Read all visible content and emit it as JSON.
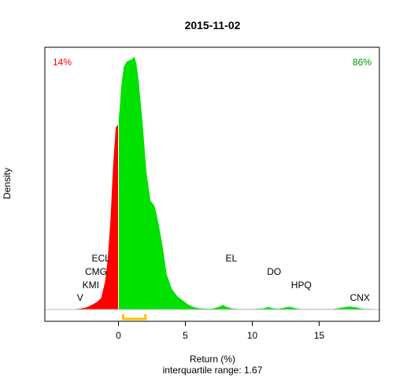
{
  "chart_data": {
    "type": "area",
    "title": "2015-11-02",
    "xlabel": "Return (%)",
    "ylabel": "Density",
    "subtitle": "interquartile range: 1.67",
    "xlim": [
      -5.5,
      19.5
    ],
    "ylim": [
      0,
      1
    ],
    "x_ticks": [
      0,
      5,
      10,
      15
    ],
    "x_tick_labels": [
      "0",
      "5",
      "10",
      "15"
    ],
    "split_at": 0,
    "negative_share_label": "14%",
    "positive_share_label": "86%",
    "colors": {
      "negative": "#ff0000",
      "positive": "#00e100",
      "iqr": "#ffc000",
      "share_negative": "#ff0000",
      "share_positive": "#009900"
    },
    "iqr": [
      0.35,
      2.02
    ],
    "density": {
      "x": [
        -3.2,
        -2.8,
        -2.4,
        -2.0,
        -1.6,
        -1.3,
        -1.0,
        -0.8,
        -0.6,
        -0.4,
        -0.2,
        -0.05,
        0.0,
        0.1,
        0.2,
        0.4,
        0.6,
        0.8,
        1.0,
        1.1,
        1.2,
        1.35,
        1.5,
        1.8,
        2.1,
        2.4,
        2.7,
        3.0,
        3.3,
        3.6,
        4.0,
        4.4,
        4.8,
        5.2,
        5.6,
        6.0,
        6.5,
        7.0,
        7.5,
        7.8,
        8.1,
        8.5,
        9.0,
        10.0,
        10.8,
        11.2,
        11.6,
        12.0,
        12.4,
        12.8,
        13.2,
        13.6,
        14.5,
        16.0,
        16.8,
        17.3,
        17.8,
        18.2,
        19.0
      ],
      "y": [
        0.002,
        0.004,
        0.008,
        0.018,
        0.03,
        0.045,
        0.11,
        0.2,
        0.35,
        0.57,
        0.72,
        0.73,
        0.74,
        0.8,
        0.88,
        0.96,
        0.98,
        0.985,
        0.99,
        0.995,
        1.0,
        0.97,
        0.91,
        0.74,
        0.54,
        0.43,
        0.41,
        0.34,
        0.25,
        0.14,
        0.08,
        0.052,
        0.036,
        0.02,
        0.01,
        0.005,
        0.003,
        0.003,
        0.01,
        0.018,
        0.01,
        0.004,
        0.002,
        0.002,
        0.004,
        0.01,
        0.004,
        0.003,
        0.007,
        0.011,
        0.005,
        0.002,
        0.002,
        0.002,
        0.008,
        0.012,
        0.008,
        0.003,
        0.002
      ]
    },
    "annotations": [
      {
        "label": "ECL",
        "x": -2.0,
        "row": 4
      },
      {
        "label": "CMG",
        "x": -2.5,
        "row": 3
      },
      {
        "label": "KMI",
        "x": -2.7,
        "row": 2
      },
      {
        "label": "V",
        "x": -3.1,
        "row": 1
      },
      {
        "label": "EL",
        "x": 8.0,
        "row": 4
      },
      {
        "label": "DO",
        "x": 11.1,
        "row": 3
      },
      {
        "label": "HPQ",
        "x": 12.9,
        "row": 2
      },
      {
        "label": "CNX",
        "x": 17.3,
        "row": 1
      }
    ]
  }
}
